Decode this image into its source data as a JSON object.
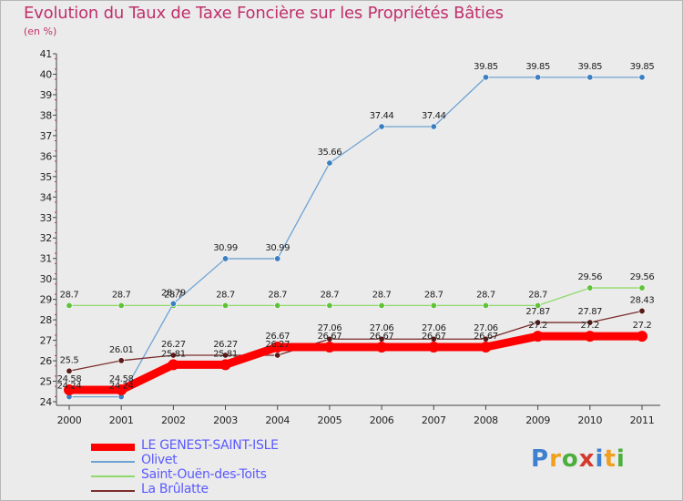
{
  "title": "Evolution du Taux de Taxe Foncière sur les Propriétés Bâties",
  "subtitle": "(en %)",
  "logo": "Proxiti",
  "chart_data": {
    "type": "line",
    "title": "Evolution du Taux de Taxe Foncière sur les Propriétés Bâties",
    "ylabel": "(en %)",
    "xlabel": "",
    "categories": [
      "2000",
      "2001",
      "2002",
      "2003",
      "2004",
      "2005",
      "2006",
      "2007",
      "2008",
      "2009",
      "2010",
      "2011"
    ],
    "ylim": [
      24,
      41
    ],
    "yticks": [
      24,
      25,
      26,
      27,
      28,
      29,
      30,
      31,
      32,
      33,
      34,
      35,
      36,
      37,
      38,
      39,
      40,
      41
    ],
    "grid": false,
    "legend_position": "bottom-left",
    "series": [
      {
        "name": "LE GENEST-SAINT-ISLE",
        "color": "#ff0000",
        "values": [
          24.58,
          24.58,
          25.81,
          25.81,
          26.67,
          26.67,
          26.67,
          26.67,
          26.67,
          27.2,
          27.2,
          27.2
        ],
        "labels": [
          "24.58",
          "24.58",
          "25.81",
          "25.81",
          "26.67",
          "26.67",
          "26.67",
          "26.67",
          "26.67",
          "27.2",
          "27.2",
          "27.2"
        ]
      },
      {
        "name": "Olivet",
        "color": "#6ea3d3",
        "marker": "#3c7fc1",
        "values": [
          24.24,
          24.24,
          28.79,
          30.99,
          30.99,
          35.66,
          37.44,
          37.44,
          39.85,
          39.85,
          39.85,
          39.85
        ],
        "labels": [
          "24.24",
          "24.24",
          "28.79",
          "30.99",
          "30.99",
          "35.66",
          "37.44",
          "37.44",
          "39.85",
          "39.85",
          "39.85",
          "39.85"
        ]
      },
      {
        "name": "Saint-Ouën-des-Toits",
        "color": "#8fd96a",
        "marker": "#5fc23a",
        "values": [
          28.7,
          28.7,
          28.7,
          28.7,
          28.7,
          28.7,
          28.7,
          28.7,
          28.7,
          28.7,
          29.56,
          29.56
        ],
        "labels": [
          "28.7",
          "28.7",
          "28.7",
          "28.7",
          "28.7",
          "28.7",
          "28.7",
          "28.7",
          "28.7",
          "28.7",
          "29.56",
          "29.56"
        ]
      },
      {
        "name": "La Brûlatte",
        "color": "#7b2d2d",
        "marker": "#5a1a1a",
        "values": [
          25.5,
          26.01,
          26.27,
          26.27,
          26.27,
          27.06,
          27.06,
          27.06,
          27.06,
          27.87,
          27.87,
          28.43
        ],
        "labels": [
          "25.5",
          "26.01",
          "26.27",
          "26.27",
          "26.27",
          "27.06",
          "27.06",
          "27.06",
          "27.06",
          "27.87",
          "27.87",
          "28.43"
        ]
      }
    ]
  }
}
